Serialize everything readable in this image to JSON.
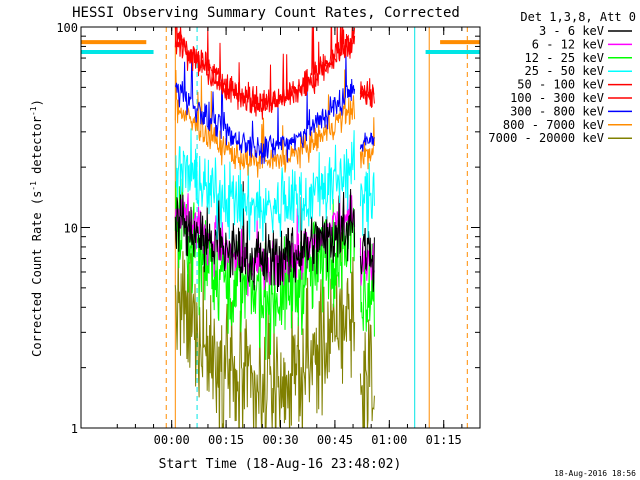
{
  "chart_data": {
    "type": "line",
    "title": "HESSI Observing Summary Count Rates, Corrected",
    "xlabel": "Start Time (18-Aug-16 23:48:02)",
    "ylabel_main": "Corrected Count Rate (s",
    "ylabel_sup1": "-1",
    "ylabel_mid": " detector",
    "ylabel_sup2": "-1",
    "ylabel_end": ")",
    "x_units": "minutes after 23:48:02",
    "xlim": [
      -13,
      97
    ],
    "ylim": [
      1,
      100
    ],
    "yscale": "log",
    "grid": false,
    "legend_position": "top-right, outside plot",
    "x_ticks": [
      {
        "label": "00:00",
        "value": 12
      },
      {
        "label": "00:15",
        "value": 27
      },
      {
        "label": "00:30",
        "value": 42
      },
      {
        "label": "00:45",
        "value": 57
      },
      {
        "label": "01:00",
        "value": 72
      },
      {
        "label": "01:15",
        "value": 87
      }
    ],
    "y_ticks": [
      {
        "label": "1",
        "value": 1
      },
      {
        "label": "10",
        "value": 10
      },
      {
        "label": "100",
        "value": 100
      }
    ],
    "legend_title": "Det 1,3,8, Att 0",
    "timestamp": "18-Aug-2016 18:56",
    "series": [
      {
        "name": "3 - 6 keV",
        "color": "#000000",
        "level": 7,
        "edge": 11,
        "noise": 0.28
      },
      {
        "name": "6 - 12 keV",
        "color": "#ff00ff",
        "level": 6.3,
        "edge": 13,
        "noise": 0.2
      },
      {
        "name": "12 - 25 keV",
        "color": "#00ff00",
        "level": 4.5,
        "edge": 10,
        "noise": 0.4
      },
      {
        "name": "25 - 50 keV",
        "color": "#00ffff",
        "level": 12.5,
        "edge": 20,
        "noise": 0.28
      },
      {
        "name": "50 - 100 keV",
        "color": "#ff0000",
        "level": 42,
        "edge": 90,
        "noise": 0.12
      },
      {
        "name": "100 - 300 keV",
        "color": "#ff0000",
        "level": 42,
        "edge": 90,
        "noise": 0.12
      },
      {
        "name": "300 - 800 keV",
        "color": "#0000ff",
        "level": 25,
        "edge": 50,
        "noise": 0.12
      },
      {
        "name": "800 - 7000 keV",
        "color": "#ff8c00",
        "level": 21,
        "edge": 40,
        "noise": 0.12
      },
      {
        "name": "7000 - 20000 keV",
        "color": "#808000",
        "level": 1.5,
        "edge": 4,
        "noise": 0.55
      }
    ],
    "flag_markers": [
      {
        "color": "#00e5e5",
        "y": 75,
        "x_start": -13,
        "x_end": 7
      },
      {
        "color": "#ff8c00",
        "y": 84,
        "x_start": -13,
        "x_end": 5
      },
      {
        "color": "#00e5e5",
        "y": 75,
        "x_start": 82,
        "x_end": 97
      },
      {
        "color": "#ff8c00",
        "y": 84,
        "x_start": 86,
        "x_end": 97
      }
    ],
    "vertical_markers": [
      {
        "x": 10.5,
        "color": "#ff8c00",
        "style": "dashed"
      },
      {
        "x": 13,
        "color": "#ff8c00",
        "style": "solid"
      },
      {
        "x": 19,
        "color": "#00e5e5",
        "style": "dashed"
      },
      {
        "x": 79,
        "color": "#00e5e5",
        "style": "solid"
      },
      {
        "x": 83,
        "color": "#ff8c00",
        "style": "solid"
      },
      {
        "x": 93.5,
        "color": "#ff8c00",
        "style": "dashed"
      }
    ],
    "data_window": {
      "start": 13,
      "gap_start": 62.5,
      "gap_end": 64,
      "end": 68
    }
  }
}
